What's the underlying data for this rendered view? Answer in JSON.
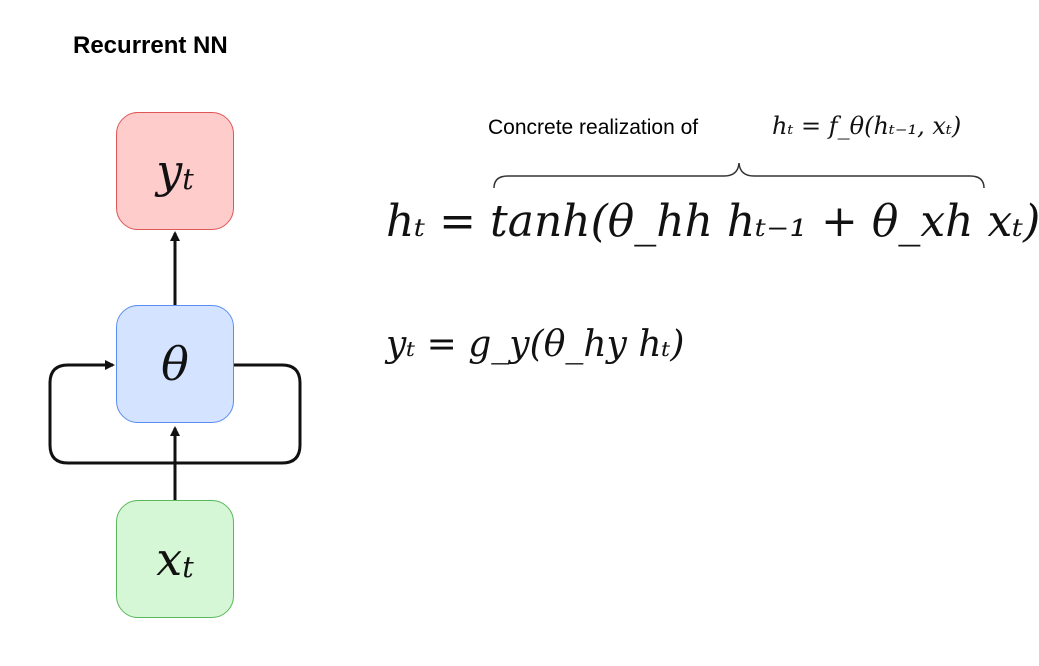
{
  "title": "Recurrent NN",
  "nodes": {
    "output": {
      "label": "y",
      "subscript": "t",
      "fill": "#ffcccc",
      "stroke": "#e05555"
    },
    "hidden": {
      "label": "θ",
      "fill": "#d4e3ff",
      "stroke": "#5a8ef2"
    },
    "input": {
      "label": "x",
      "subscript": "t",
      "fill": "#d6f7d6",
      "stroke": "#5cb85c"
    }
  },
  "annotation": {
    "caption": "Concrete realization of",
    "formula": "hₜ = f_θ(hₜ₋₁, xₜ)"
  },
  "equations": {
    "hidden_update": "hₜ = tanh(θ_hh hₜ₋₁ + θ_xh xₜ)",
    "output": "yₜ = g_y(θ_hy hₜ)"
  }
}
